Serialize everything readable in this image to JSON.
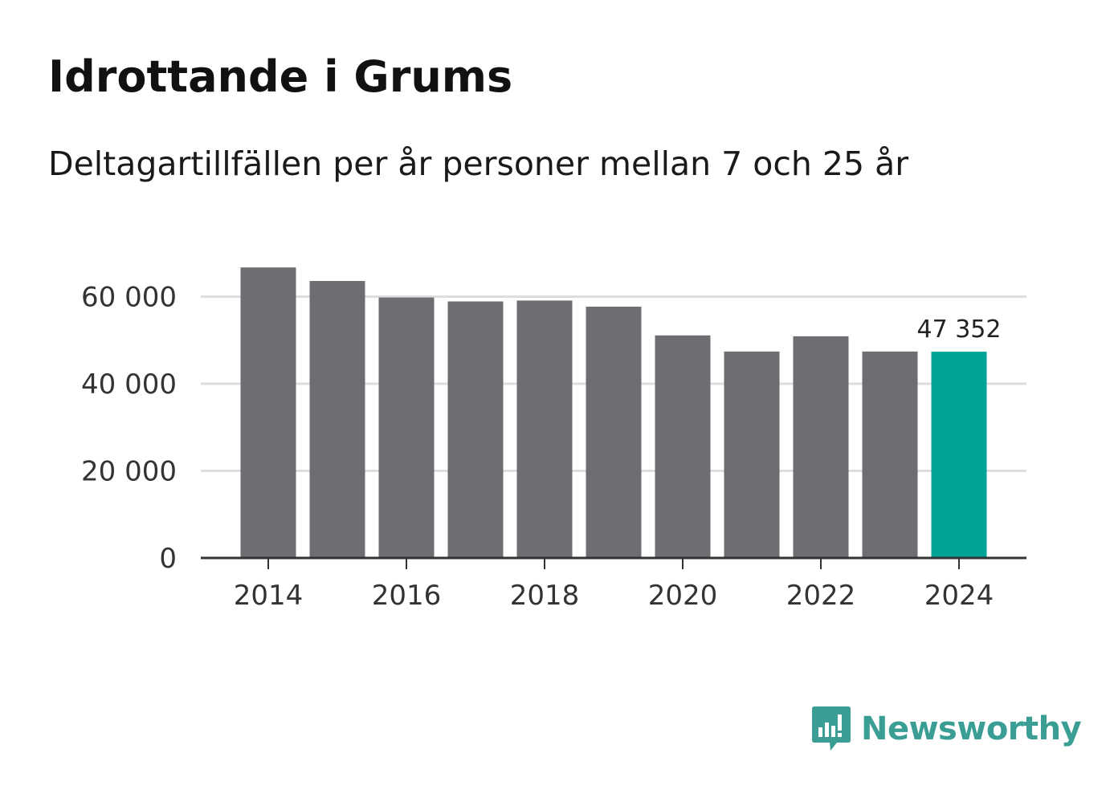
{
  "title": "Idrottande i Grums",
  "subtitle": "Deltagartillfällen per år personer mellan 7 och 25 år",
  "brand": "Newsworthy",
  "colors": {
    "bar": "#6e6d72",
    "highlight": "#00a396",
    "grid": "#dddddd",
    "axis": "#333333",
    "brand": "#3a9e95"
  },
  "chart_data": {
    "type": "bar",
    "title": "Idrottande i Grums",
    "subtitle": "Deltagartillfällen per år personer mellan 7 och 25 år",
    "xlabel": "",
    "ylabel": "",
    "categories": [
      "2014",
      "2015",
      "2016",
      "2017",
      "2018",
      "2019",
      "2020",
      "2021",
      "2022",
      "2023",
      "2024"
    ],
    "values": [
      66700,
      63600,
      59800,
      58900,
      59100,
      57700,
      51100,
      47400,
      50900,
      47400,
      47352
    ],
    "highlight_index": 10,
    "x_tick_labels": [
      "2014",
      "2016",
      "2018",
      "2020",
      "2022",
      "2024"
    ],
    "y_ticks": [
      0,
      20000,
      40000,
      60000
    ],
    "y_tick_labels": [
      "0",
      "20 000",
      "40 000",
      "60 000"
    ],
    "ylim": [
      0,
      70000
    ],
    "grid": true,
    "annotations": [
      {
        "category": "2024",
        "text": "47 352"
      }
    ]
  }
}
